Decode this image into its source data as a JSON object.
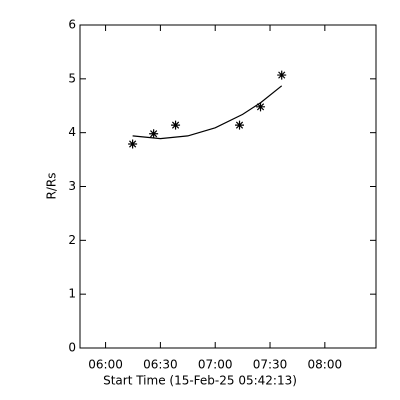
{
  "chart_data": {
    "type": "scatter",
    "x_label": "Start Time (15-Feb-25 05:42:13)",
    "y_label": "R/Rs",
    "xlim": [
      346,
      508
    ],
    "xticks": [
      {
        "value": 360,
        "label": "06:00"
      },
      {
        "value": 390,
        "label": "06:30"
      },
      {
        "value": 420,
        "label": "07:00"
      },
      {
        "value": 450,
        "label": "07:30"
      },
      {
        "value": 480,
        "label": "08:00"
      }
    ],
    "ylim": [
      0,
      6
    ],
    "yticks": [
      0,
      1,
      2,
      3,
      4,
      5,
      6
    ],
    "series": [
      {
        "mode": "markers",
        "color": "#000000",
        "x": [
          374.8,
          386.3,
          398.3,
          433.3,
          444.8,
          456.4
        ],
        "values": [
          3.79,
          3.98,
          4.14,
          4.14,
          4.48,
          5.07
        ]
      },
      {
        "mode": "line",
        "color": "#000000",
        "x": [
          374.8,
          390,
          405,
          420,
          435,
          445,
          456.4
        ],
        "values": [
          3.94,
          3.89,
          3.94,
          4.09,
          4.34,
          4.56,
          4.87
        ]
      }
    ]
  }
}
